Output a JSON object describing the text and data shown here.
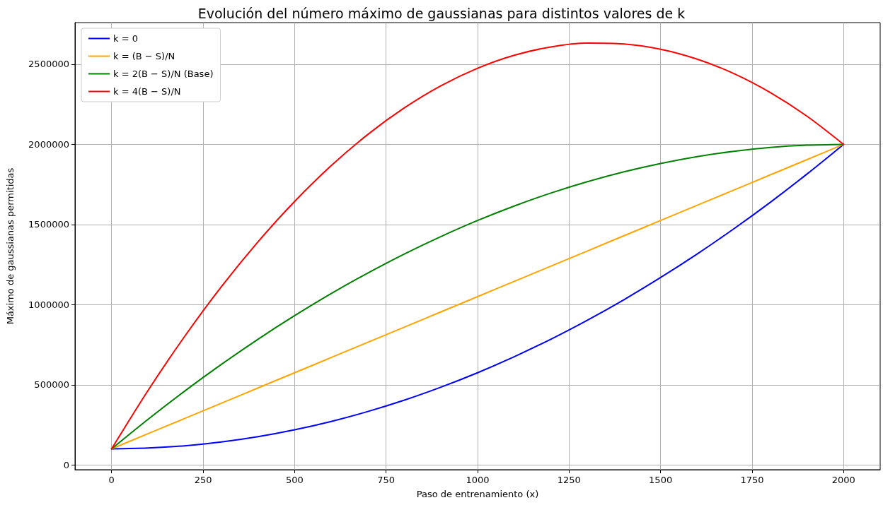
{
  "chart_data": {
    "type": "line",
    "title": "Evolución del número máximo de gaussianas para distintos valores de k",
    "xlabel": "Paso de entrenamiento (x)",
    "ylabel": "Máximo de gaussianas permitidas",
    "x": [
      0,
      100,
      200,
      300,
      400,
      500,
      600,
      700,
      800,
      900,
      1000,
      1100,
      1200,
      1300,
      1400,
      1500,
      1600,
      1700,
      1800,
      1900,
      2000
    ],
    "series": [
      {
        "name": "k = 0",
        "color": "#0000ff",
        "values": [
          100000,
          105000,
          119000,
          143000,
          176000,
          219000,
          271000,
          333000,
          404000,
          485000,
          575000,
          675000,
          784000,
          903000,
          1031000,
          1169000,
          1316000,
          1473000,
          1639000,
          1815000,
          2000000
        ]
      },
      {
        "name": "k = (B − S)/N",
        "color": "#ffa500",
        "values": [
          100000,
          195000,
          290000,
          385000,
          480000,
          575000,
          670000,
          765000,
          860000,
          955000,
          1050000,
          1145000,
          1240000,
          1335000,
          1430000,
          1525000,
          1620000,
          1715000,
          1810000,
          1905000,
          2000000
        ]
      },
      {
        "name": "k = 2(B − S)/N (Base)",
        "color": "#008000",
        "values": [
          100000,
          285000,
          461000,
          627000,
          784000,
          931000,
          1069000,
          1197000,
          1316000,
          1425000,
          1525000,
          1615000,
          1696000,
          1767000,
          1829000,
          1881000,
          1924000,
          1957000,
          1981000,
          1995000,
          2000000
        ]
      },
      {
        "name": "k = 4(B − S)/N",
        "color": "#ff0000",
        "values": [
          100000,
          466000,
          803000,
          1112000,
          1392000,
          1644000,
          1867000,
          2062000,
          2228000,
          2366000,
          2475000,
          2556000,
          2608000,
          2632000,
          2627000,
          2594000,
          2532000,
          2442000,
          2323000,
          2176000,
          2000000
        ]
      }
    ],
    "xlim": [
      -100,
      2100
    ],
    "xticks": [
      0,
      250,
      500,
      750,
      1000,
      1250,
      1500,
      1750,
      2000
    ],
    "ylim": [
      -30000,
      2760000
    ],
    "yticks": [
      0,
      500000,
      1000000,
      1500000,
      2000000,
      2500000
    ],
    "grid": true,
    "legend": "top left",
    "marker": "none",
    "line_style": "solid"
  }
}
